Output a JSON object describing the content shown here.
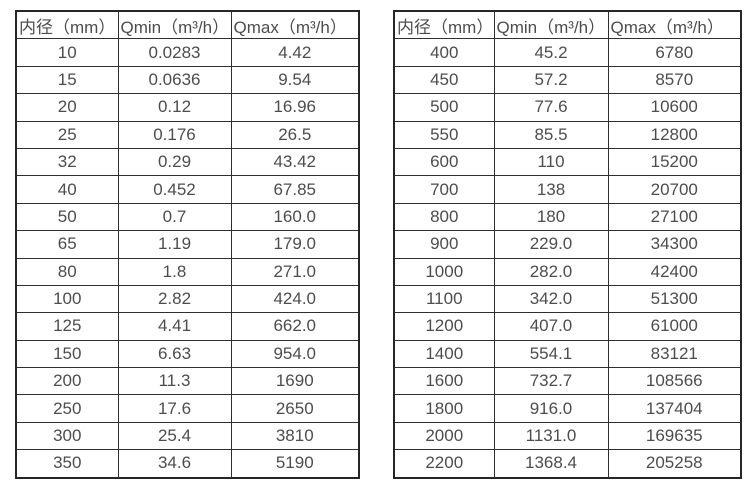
{
  "colors": {
    "background": "#ffffff",
    "border": "#2f2f2f",
    "outer_border": "#262626",
    "text": "#4d4d4d"
  },
  "tables": [
    {
      "name": "flow-table-small-diameters",
      "headers": [
        "内径（mm）",
        "Qmin（m³/h）",
        "Qmax（m³/h）"
      ],
      "rows": [
        [
          "10",
          "0.0283",
          "4.42"
        ],
        [
          "15",
          "0.0636",
          "9.54"
        ],
        [
          "20",
          "0.12",
          "16.96"
        ],
        [
          "25",
          "0.176",
          "26.5"
        ],
        [
          "32",
          "0.29",
          "43.42"
        ],
        [
          "40",
          "0.452",
          "67.85"
        ],
        [
          "50",
          "0.7",
          "160.0"
        ],
        [
          "65",
          "1.19",
          "179.0"
        ],
        [
          "80",
          "1.8",
          "271.0"
        ],
        [
          "100",
          "2.82",
          "424.0"
        ],
        [
          "125",
          "4.41",
          "662.0"
        ],
        [
          "150",
          "6.63",
          "954.0"
        ],
        [
          "200",
          "11.3",
          "1690"
        ],
        [
          "250",
          "17.6",
          "2650"
        ],
        [
          "300",
          "25.4",
          "3810"
        ],
        [
          "350",
          "34.6",
          "5190"
        ]
      ]
    },
    {
      "name": "flow-table-large-diameters",
      "headers": [
        "内径（mm）",
        "Qmin（m³/h）",
        "Qmax（m³/h）"
      ],
      "rows": [
        [
          "400",
          "45.2",
          "6780"
        ],
        [
          "450",
          "57.2",
          "8570"
        ],
        [
          "500",
          "77.6",
          "10600"
        ],
        [
          "550",
          "85.5",
          "12800"
        ],
        [
          "600",
          "110",
          "15200"
        ],
        [
          "700",
          "138",
          "20700"
        ],
        [
          "800",
          "180",
          "27100"
        ],
        [
          "900",
          "229.0",
          "34300"
        ],
        [
          "1000",
          "282.0",
          "42400"
        ],
        [
          "1100",
          "342.0",
          "51300"
        ],
        [
          "1200",
          "407.0",
          "61000"
        ],
        [
          "1400",
          "554.1",
          "83121"
        ],
        [
          "1600",
          "732.7",
          "108566"
        ],
        [
          "1800",
          "916.0",
          "137404"
        ],
        [
          "2000",
          "1131.0",
          "169635"
        ],
        [
          "2200",
          "1368.4",
          "205258"
        ]
      ]
    }
  ]
}
